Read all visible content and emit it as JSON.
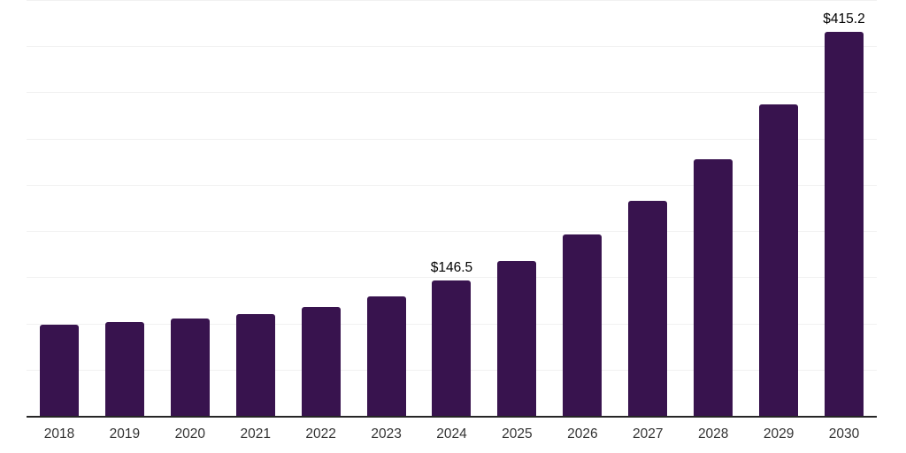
{
  "chart_data": {
    "type": "bar",
    "title": "",
    "xlabel": "",
    "ylabel": "",
    "categories": [
      "2018",
      "2019",
      "2020",
      "2021",
      "2022",
      "2023",
      "2024",
      "2025",
      "2026",
      "2027",
      "2028",
      "2029",
      "2030"
    ],
    "values": [
      98.6,
      101.4,
      105.6,
      109.8,
      117.7,
      129.2,
      146.5,
      167.8,
      196.8,
      232.4,
      278.0,
      337.5,
      415.2
    ],
    "data_labels": [
      {
        "index": 6,
        "text": "$146.5"
      },
      {
        "index": 12,
        "text": "$415.2"
      }
    ],
    "value_prefix": "$",
    "ylim": [
      0,
      450
    ],
    "gridline_step": 50,
    "grid": "horizontal",
    "legend": "none",
    "y_axis_labels_visible": false,
    "colors": {
      "bar": "#38134E",
      "axis_line": "#262626",
      "gridline": "#F1F1F1",
      "tick_label": "#333333",
      "data_label": "#000000",
      "background": "#FFFFFF"
    }
  }
}
